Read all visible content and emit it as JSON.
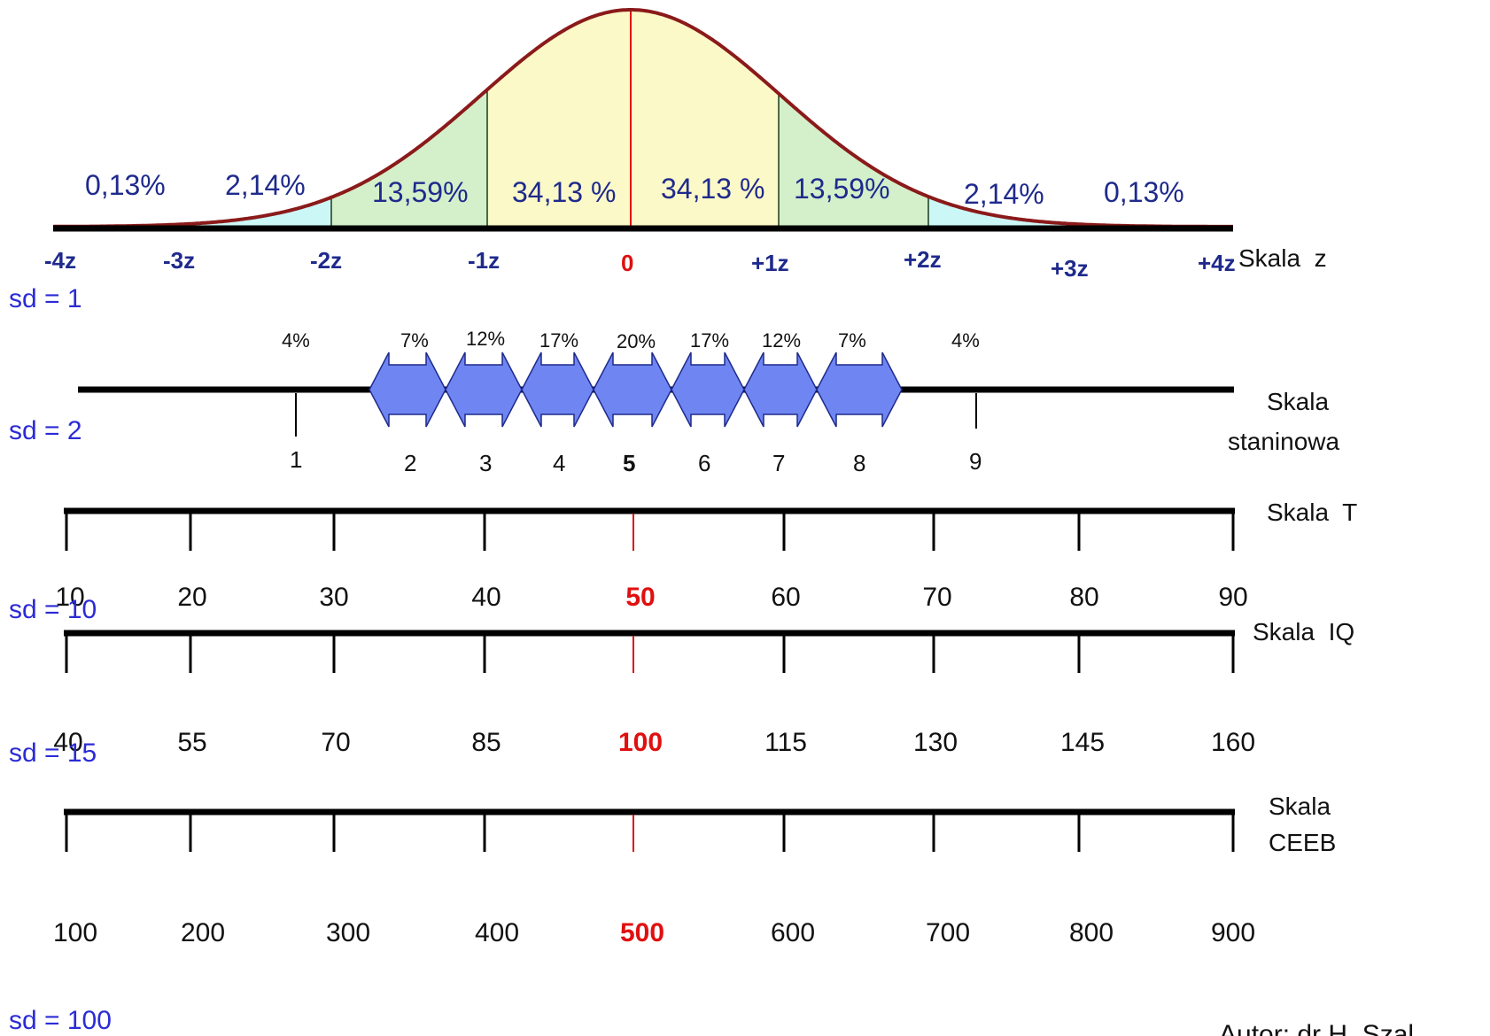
{
  "colors": {
    "curve": "#8b1a1a",
    "tail": "#f5b800",
    "band3": "#ccf7f7",
    "band2": "#d3f0cb",
    "band1": "#fbf9c8",
    "center_red": "#e01010",
    "arrow_fill": "#6f86f2",
    "arrow_stroke": "#1f2a8c",
    "sd_blue": "#2b2bd6",
    "zone_text": "#1f2a8c"
  },
  "z_scale": {
    "name": "Skala  z",
    "sd_label": "sd = 1",
    "percentages": [
      "0,13%",
      "2,14%",
      "13,59%",
      "34,13 %",
      "34,13 %",
      "13,59%",
      "2,14%",
      "0,13%"
    ],
    "ticks": [
      "-4z",
      "-3z",
      "-2z",
      "-1z",
      "0",
      "+1z",
      "+2z",
      "+3z",
      "+4z"
    ]
  },
  "stanine_scale": {
    "name_line1": "Skala",
    "name_line2": "staninowa",
    "sd_label": "sd = 2",
    "percentages": [
      "4%",
      "7%",
      "12%",
      "17%",
      "20%",
      "17%",
      "12%",
      "7%",
      "4%"
    ],
    "numbers": [
      "1",
      "2",
      "3",
      "4",
      "5",
      "6",
      "7",
      "8",
      "9"
    ],
    "center_index": 4
  },
  "t_scale": {
    "name": "Skala  T",
    "sd_label": "sd = 10",
    "ticks": [
      "10",
      "20",
      "30",
      "40",
      "50",
      "60",
      "70",
      "80",
      "90"
    ],
    "center_index": 4
  },
  "iq_scale": {
    "name": "Skala  IQ",
    "sd_label": "sd = 15",
    "ticks": [
      "40",
      "55",
      "70",
      "85",
      "100",
      "115",
      "130",
      "145",
      "160"
    ],
    "center_index": 4
  },
  "ceeb_scale": {
    "name_line1": "Skala",
    "name_line2": "CEEB",
    "sd_label": "sd = 100",
    "ticks": [
      "100",
      "200",
      "300",
      "400",
      "500",
      "600",
      "700",
      "800",
      "900"
    ],
    "center_index": 4
  },
  "author": "Autor: dr H. Szal"
}
